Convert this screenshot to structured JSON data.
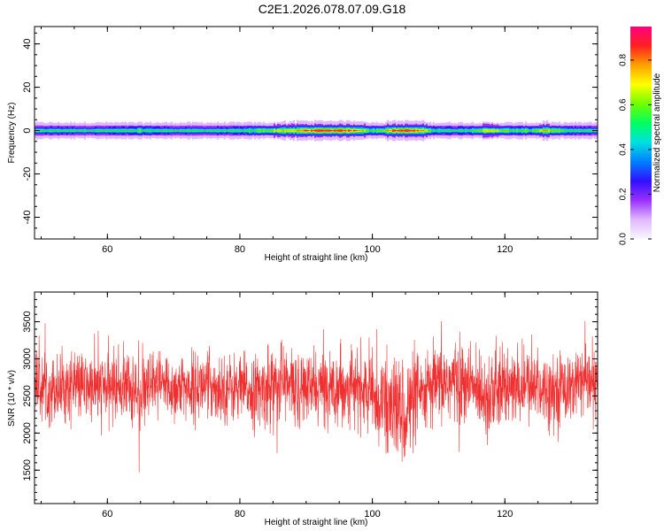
{
  "title": "C2E1.2026.078.07.09.G18",
  "chart_data": [
    {
      "type": "heatmap",
      "xlabel": "Height of straight line (km)",
      "ylabel": "Frequency (Hz)",
      "xlim": [
        49,
        134
      ],
      "ylim": [
        -50,
        48
      ],
      "x_ticks": [
        60,
        80,
        100,
        120
      ],
      "y_ticks": [
        -40,
        -20,
        0,
        20,
        40
      ],
      "ridge_frequency": 0,
      "colorbar": {
        "label": "Normalized spectral amplitude",
        "range": [
          0,
          0.95
        ],
        "ticks": [
          0.0,
          0.2,
          0.4,
          0.6,
          0.8
        ],
        "colormap": [
          "#f8f8ff",
          "#e0b8ff",
          "#9a30ff",
          "#3010ff",
          "#0080ff",
          "#00e0e0",
          "#00ff60",
          "#70ff00",
          "#ffff00",
          "#ffa000",
          "#ff2020",
          "#ff0080"
        ]
      },
      "amplitude_profile": {
        "x": [
          49,
          55,
          60,
          65,
          70,
          75,
          80,
          84,
          86,
          88,
          90,
          93,
          96,
          98,
          99,
          100,
          101,
          103,
          105,
          107,
          109,
          112,
          115,
          117,
          119,
          121,
          124,
          126,
          128,
          131,
          134
        ],
        "amplitude": [
          0.5,
          0.5,
          0.5,
          0.55,
          0.5,
          0.5,
          0.52,
          0.6,
          0.72,
          0.7,
          0.85,
          0.88,
          0.86,
          0.8,
          0.6,
          0.55,
          0.6,
          0.85,
          0.9,
          0.8,
          0.55,
          0.5,
          0.55,
          0.7,
          0.65,
          0.55,
          0.55,
          0.75,
          0.55,
          0.5,
          0.5
        ]
      }
    },
    {
      "type": "line",
      "xlabel": "Height of straight line (km)",
      "ylabel": "SNR (10 * v/v)",
      "xlim": [
        49,
        134
      ],
      "ylim": [
        1050,
        3900
      ],
      "x_ticks": [
        60,
        80,
        100,
        120
      ],
      "y_ticks": [
        1500,
        2000,
        2500,
        3000,
        3500
      ],
      "series": [
        {
          "color": "#f03030",
          "profile_x": [
            49,
            52,
            55,
            58,
            60,
            63,
            65,
            68,
            70,
            73,
            75,
            78,
            80,
            83,
            85,
            86,
            88,
            90,
            93,
            95,
            98,
            100,
            102,
            103,
            104,
            105,
            106,
            108,
            110,
            112,
            114,
            116,
            117,
            118,
            120,
            122,
            124,
            126,
            128,
            130,
            132,
            134
          ],
          "profile_mean": [
            2650,
            2600,
            2650,
            2600,
            2620,
            2650,
            2500,
            2650,
            2600,
            2620,
            2650,
            2600,
            2600,
            2550,
            2650,
            2700,
            2600,
            2600,
            2620,
            2650,
            2600,
            2500,
            2400,
            2350,
            2300,
            2300,
            2400,
            2550,
            2650,
            2700,
            2650,
            2600,
            2550,
            2500,
            2600,
            2600,
            2650,
            2600,
            2600,
            2650,
            2650,
            2650
          ],
          "profile_spread": [
            300,
            300,
            300,
            300,
            300,
            320,
            350,
            320,
            300,
            300,
            300,
            300,
            300,
            320,
            380,
            420,
            350,
            320,
            320,
            320,
            320,
            350,
            400,
            450,
            500,
            500,
            420,
            350,
            350,
            400,
            350,
            320,
            380,
            420,
            350,
            320,
            320,
            320,
            320,
            320,
            300,
            300
          ]
        }
      ]
    }
  ]
}
